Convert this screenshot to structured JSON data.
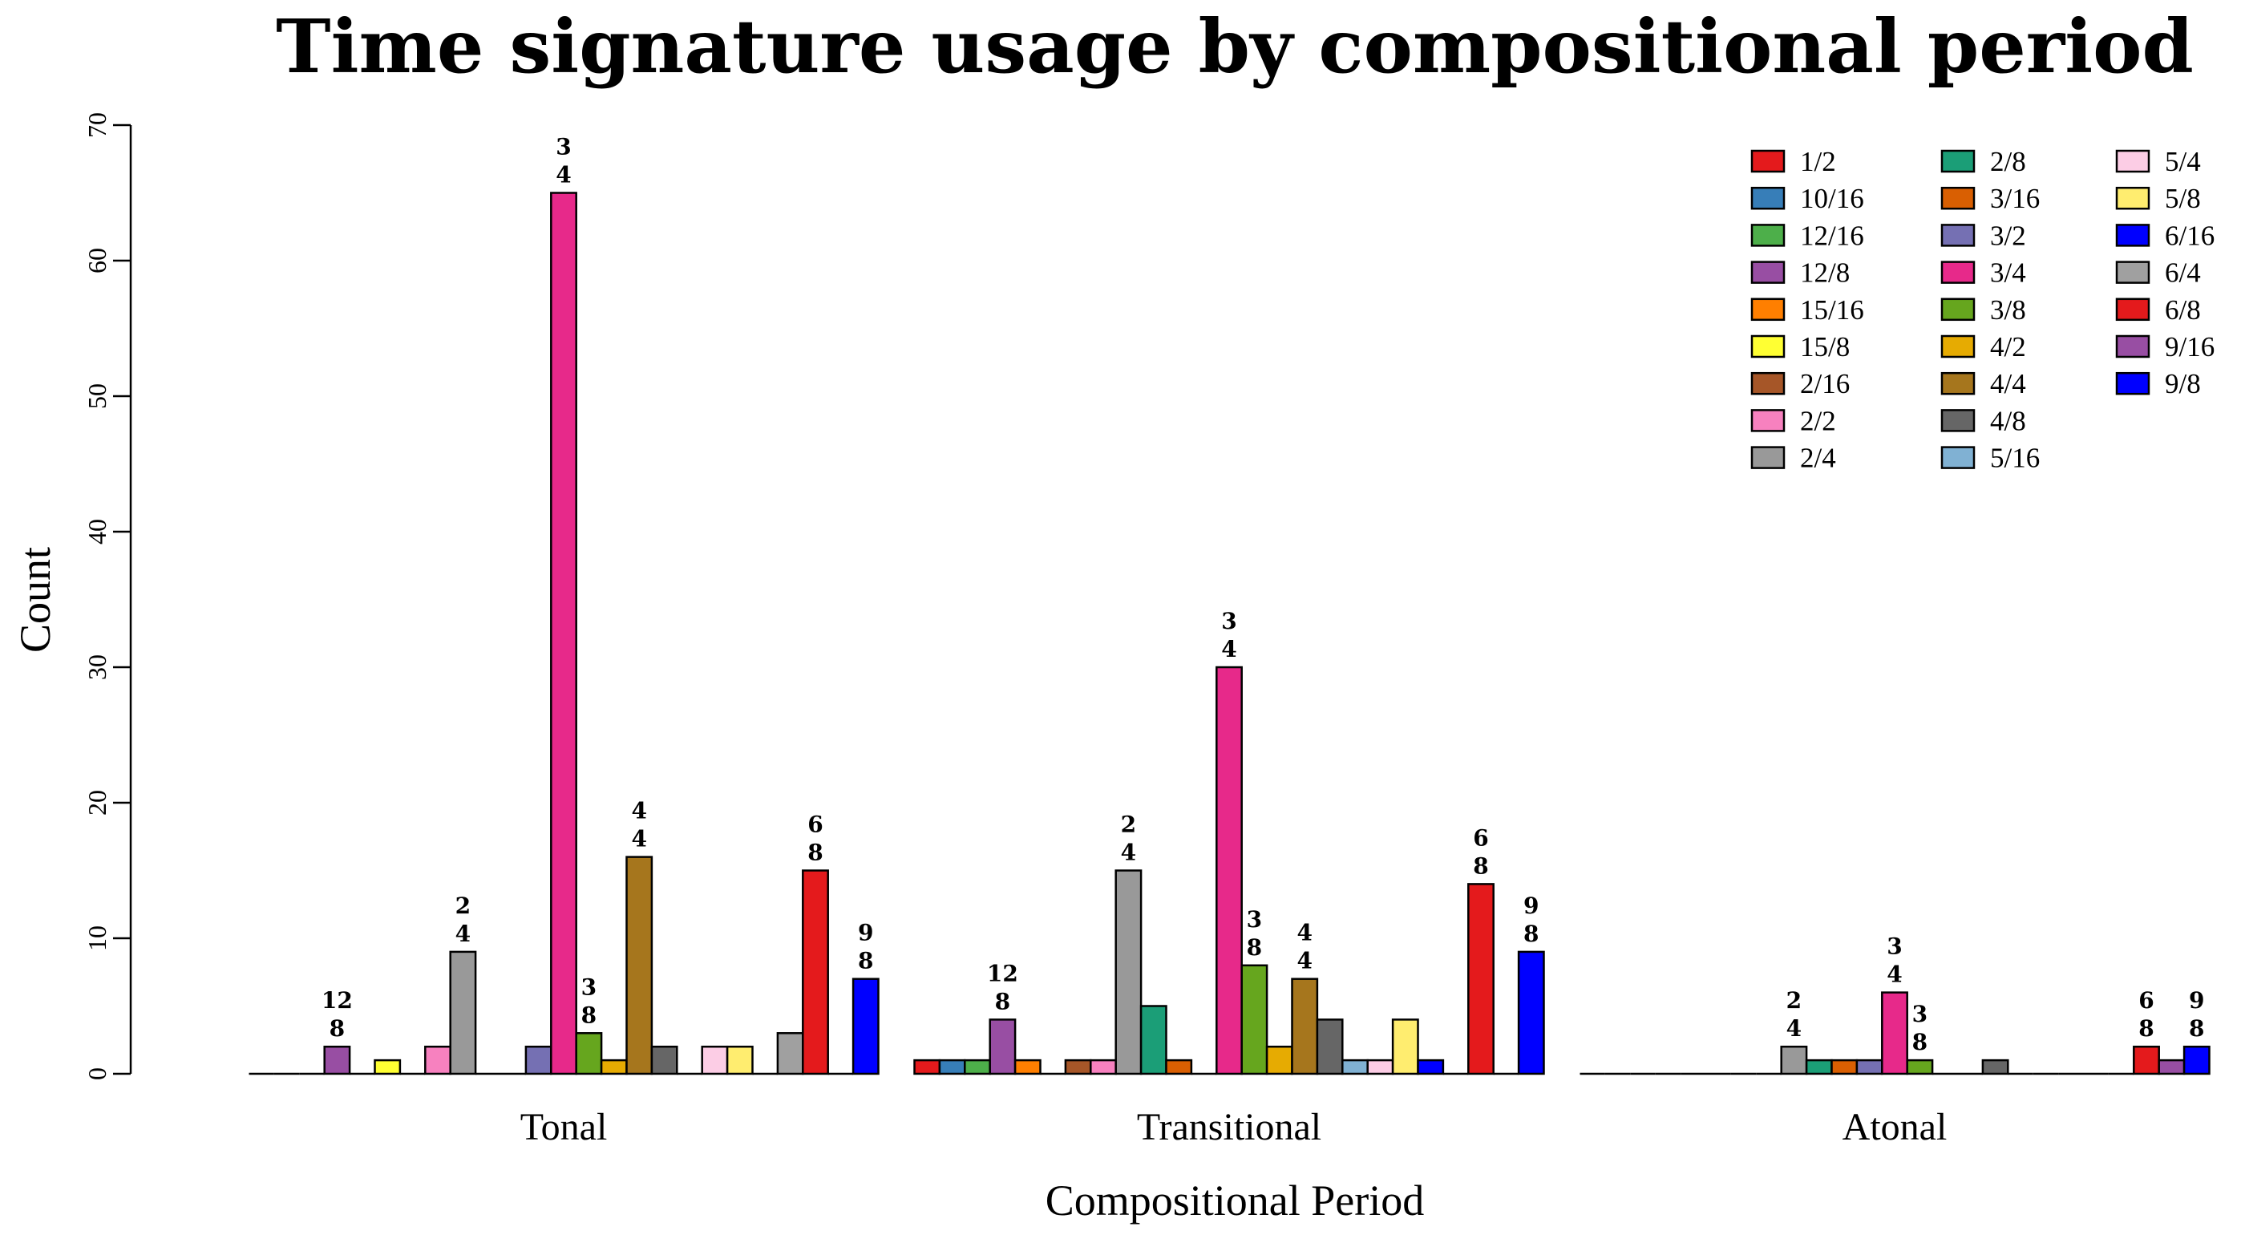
{
  "chart_data": {
    "type": "bar",
    "title": "Time signature usage by compositional period",
    "xlabel": "Compositional Period",
    "ylabel": "Count",
    "ylim": [
      0,
      70
    ],
    "yticks": [
      0,
      10,
      20,
      30,
      40,
      50,
      60,
      70
    ],
    "grid": false,
    "legend_position": "top-right",
    "legend_columns": 3,
    "categories": [
      "Tonal",
      "Transitional",
      "Atonal"
    ],
    "series": [
      {
        "name": "1/2",
        "color": "#E41A1C",
        "values": [
          0,
          1,
          0
        ]
      },
      {
        "name": "10/16",
        "color": "#377EB8",
        "values": [
          0,
          1,
          0
        ]
      },
      {
        "name": "12/16",
        "color": "#4DAF4A",
        "values": [
          0,
          1,
          0
        ]
      },
      {
        "name": "12/8",
        "color": "#984EA3",
        "values": [
          2,
          4,
          0
        ],
        "label_top": "12",
        "label_bottom": "8"
      },
      {
        "name": "15/16",
        "color": "#FF7F00",
        "values": [
          0,
          1,
          0
        ]
      },
      {
        "name": "15/8",
        "color": "#FFFF33",
        "values": [
          1,
          0,
          0
        ]
      },
      {
        "name": "2/16",
        "color": "#A65628",
        "values": [
          0,
          1,
          0
        ]
      },
      {
        "name": "2/2",
        "color": "#F781BF",
        "values": [
          2,
          1,
          0
        ]
      },
      {
        "name": "2/4",
        "color": "#999999",
        "values": [
          9,
          15,
          2
        ],
        "label_top": "2",
        "label_bottom": "4"
      },
      {
        "name": "2/8",
        "color": "#1B9E77",
        "values": [
          0,
          5,
          1
        ]
      },
      {
        "name": "3/16",
        "color": "#D95F02",
        "values": [
          0,
          1,
          1
        ]
      },
      {
        "name": "3/2",
        "color": "#7570B3",
        "values": [
          2,
          0,
          1
        ]
      },
      {
        "name": "3/4",
        "color": "#E7298A",
        "values": [
          65,
          30,
          6
        ],
        "label_top": "3",
        "label_bottom": "4"
      },
      {
        "name": "3/8",
        "color": "#66A61E",
        "values": [
          3,
          8,
          1
        ],
        "label_top": "3",
        "label_bottom": "8"
      },
      {
        "name": "4/2",
        "color": "#E6AB02",
        "values": [
          1,
          2,
          0
        ]
      },
      {
        "name": "4/4",
        "color": "#A6761D",
        "values": [
          16,
          7,
          0
        ],
        "label_top": "4",
        "label_bottom": "4"
      },
      {
        "name": "4/8",
        "color": "#666666",
        "values": [
          2,
          4,
          1
        ]
      },
      {
        "name": "5/16",
        "color": "#80B1D3",
        "values": [
          0,
          1,
          0
        ]
      },
      {
        "name": "5/4",
        "color": "#FCCDE5",
        "values": [
          2,
          1,
          0
        ]
      },
      {
        "name": "5/8",
        "color": "#FFED6F",
        "values": [
          2,
          4,
          0
        ]
      },
      {
        "name": "6/16",
        "color": "#0000FF",
        "values": [
          0,
          1,
          0
        ]
      },
      {
        "name": "6/4",
        "color": "#A0A0A0",
        "values": [
          3,
          0,
          0
        ]
      },
      {
        "name": "6/8",
        "color": "#E41A1C",
        "values": [
          15,
          14,
          2
        ],
        "label_top": "6",
        "label_bottom": "8"
      },
      {
        "name": "9/16",
        "color": "#984EA3",
        "values": [
          0,
          0,
          1
        ]
      },
      {
        "name": "9/8",
        "color": "#0000FF",
        "values": [
          7,
          9,
          2
        ],
        "label_top": "9",
        "label_bottom": "8"
      }
    ]
  }
}
